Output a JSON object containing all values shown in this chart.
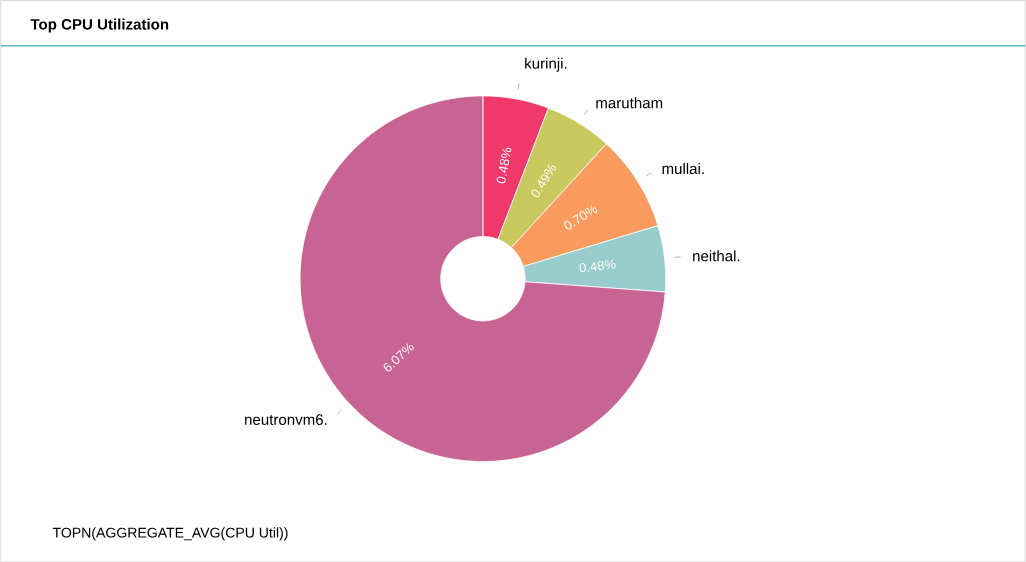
{
  "chart_data": {
    "type": "donut",
    "title": "Top CPU Utilization",
    "categories": [
      "kurinji.",
      "marutham",
      "mullai.",
      "neithal.",
      "neutronvm6."
    ],
    "values": [
      0.48,
      0.49,
      0.7,
      0.48,
      6.07
    ],
    "value_labels": [
      "0.48%",
      "0.49%",
      "0.70%",
      "0.48%",
      "6.07%"
    ],
    "colors": [
      "#f0386b",
      "#c9c95f",
      "#f99b5e",
      "#99cccc",
      "#c86494"
    ],
    "annotations": [
      "TOPN(AGGREGATE_AVG(CPU Util))"
    ]
  }
}
